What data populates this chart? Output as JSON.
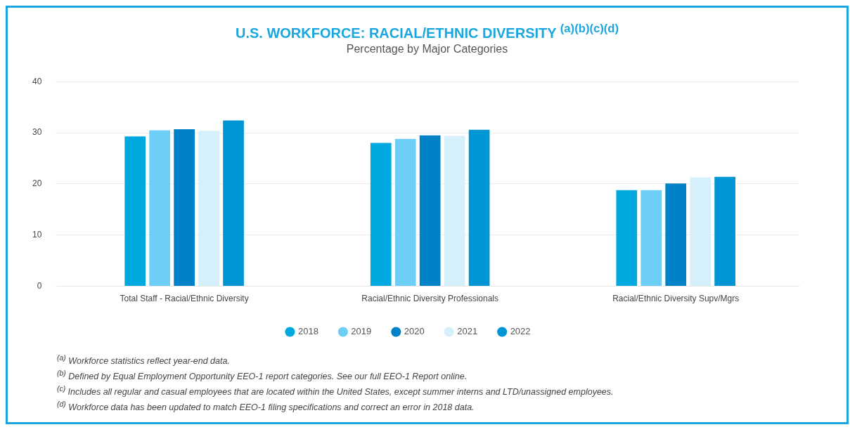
{
  "chart_data": {
    "type": "bar",
    "title": "U.S. WORKFORCE: RACIAL/ETHNIC DIVERSITY $^{(a)(b)(c)(d)}$",
    "subtitle": "Percentage by Major Categories",
    "categories": [
      "Total Staff - Racial/Ethnic Diversity",
      "Racial/Ethnic Diversity Professionals",
      "Racial/Ethnic Diversity Supv/Mgrs"
    ],
    "series": [
      {
        "name": "2018",
        "color": "#00a8e0",
        "values": [
          29.3,
          28.0,
          18.8
        ]
      },
      {
        "name": "2019",
        "color": "#6dcff6",
        "values": [
          30.5,
          28.8,
          18.8
        ]
      },
      {
        "name": "2020",
        "color": "#0082c8",
        "values": [
          30.7,
          29.5,
          20.1
        ]
      },
      {
        "name": "2021",
        "color": "#d6f0fb",
        "values": [
          30.4,
          29.4,
          21.3
        ]
      },
      {
        "name": "2022",
        "color": "#0096d6",
        "values": [
          32.4,
          30.6,
          21.4
        ]
      }
    ],
    "ylim": [
      0,
      40
    ],
    "yticks": [
      0,
      10,
      20,
      30,
      40
    ],
    "grid": "y",
    "legend": "bottom",
    "annotations": [
      "$^{(a)}$ Workforce statistics reflect year-end data.",
      "$^{(b)}$ Defined by Equal Employment Opportunity EEO-1 report categories. See our full EEO-1 Report online.",
      "$^{(c)}$ Includes all regular and casual employees that are located within the United States, except summer interns and LTD/unassigned employees.",
      "$^{(d)}$ Workforce data has been updated to match EEO-1 filing specifications and correct an error in 2018 data."
    ]
  }
}
